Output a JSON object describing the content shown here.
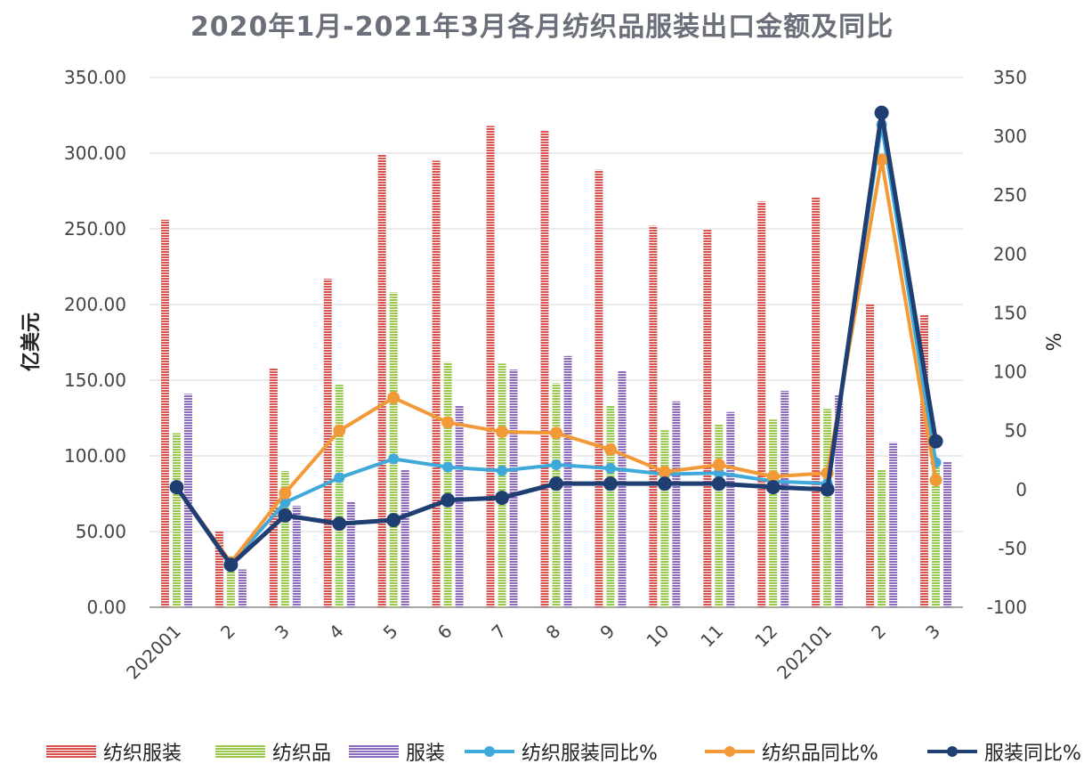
{
  "chart_data": {
    "type": "bar",
    "title": "2020年1月-2021年3月各月纺织品服装出口金额及同比",
    "ylabel": "亿美元",
    "y2label": "%",
    "ylim": [
      0,
      350
    ],
    "y2lim": [
      -100,
      350
    ],
    "yticks": [
      "0.00",
      "50.00",
      "100.00",
      "150.00",
      "200.00",
      "250.00",
      "300.00",
      "350.00"
    ],
    "y2ticks": [
      "-100",
      "-50",
      "0",
      "50",
      "100",
      "150",
      "200",
      "250",
      "300",
      "350"
    ],
    "categories": [
      "202001",
      "2",
      "3",
      "4",
      "5",
      "6",
      "7",
      "8",
      "9",
      "10",
      "11",
      "12",
      "202101",
      "2",
      "3"
    ],
    "grid": true,
    "legend_position": "bottom",
    "series": [
      {
        "name": "纺织服装",
        "kind": "bar",
        "axis": "left",
        "color": "#d9534f",
        "values": [
          256,
          50,
          158,
          217,
          299,
          295,
          318,
          315,
          289,
          252,
          250,
          268,
          271,
          200,
          193
        ]
      },
      {
        "name": "纺织品",
        "kind": "bar",
        "axis": "left",
        "color": "#9bc94f",
        "values": [
          115,
          27,
          90,
          147,
          208,
          162,
          161,
          148,
          133,
          117,
          121,
          124,
          131,
          91,
          97
        ]
      },
      {
        "name": "服装",
        "kind": "bar",
        "axis": "left",
        "color": "#8e6bbf",
        "values": [
          141,
          25,
          67,
          70,
          91,
          133,
          157,
          166,
          156,
          136,
          129,
          143,
          140,
          109,
          96
        ]
      },
      {
        "name": "纺织服装同比%",
        "kind": "line",
        "axis": "right",
        "color": "#3fa9d9",
        "values": [
          2,
          -63,
          -11,
          10,
          26,
          19,
          16,
          21,
          18,
          13,
          14,
          7,
          5,
          310,
          23
        ]
      },
      {
        "name": "纺织品同比%",
        "kind": "line",
        "axis": "right",
        "color": "#f39a38",
        "values": [
          2,
          -62,
          -3,
          50,
          78,
          57,
          49,
          48,
          34,
          15,
          21,
          11,
          14,
          280,
          8
        ]
      },
      {
        "name": "服装同比%",
        "kind": "line",
        "axis": "right",
        "color": "#1f3f73",
        "values": [
          2,
          -64,
          -22,
          -29,
          -26,
          -9,
          -7,
          5,
          5,
          5,
          5,
          2,
          0,
          320,
          41
        ]
      }
    ]
  }
}
